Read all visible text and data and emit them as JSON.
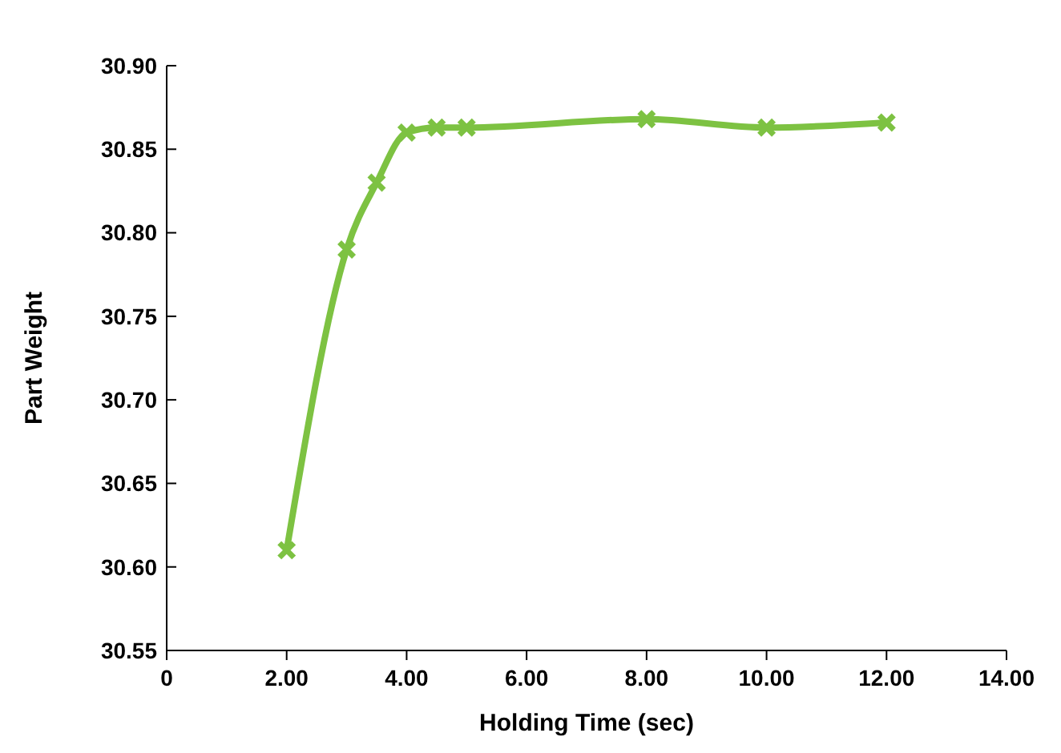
{
  "chart_data": {
    "type": "line",
    "xlabel": "Holding Time (sec)",
    "ylabel": "Part Weight",
    "x": [
      2,
      3,
      3.5,
      4,
      4.5,
      5,
      8,
      10,
      12
    ],
    "series": [
      {
        "color": "#7dc242",
        "values": [
          30.61,
          30.79,
          30.83,
          30.86,
          30.863,
          30.863,
          30.868,
          30.863,
          30.866
        ]
      }
    ],
    "xlim": [
      0,
      14
    ],
    "xticks": [
      0,
      {
        "value": 2,
        "label": "2.00"
      },
      {
        "value": 4,
        "label": "4.00"
      },
      {
        "value": 6,
        "label": "6.00"
      },
      {
        "value": 8,
        "label": "8.00"
      },
      {
        "value": 10,
        "label": "10.00"
      },
      {
        "value": 12,
        "label": "12.00"
      },
      {
        "value": 14,
        "label": "14.00"
      }
    ],
    "ylim": [
      30.55,
      30.9
    ],
    "yticks": [
      {
        "value": 30.55,
        "label": "30.55"
      },
      {
        "value": 30.6,
        "label": "30.60"
      },
      {
        "value": 30.65,
        "label": "30.65"
      },
      {
        "value": 30.7,
        "label": "30.70"
      },
      {
        "value": 30.75,
        "label": "30.75"
      },
      {
        "value": 30.8,
        "label": "30.80"
      },
      {
        "value": 30.85,
        "label": "30.85"
      },
      {
        "value": 30.9,
        "label": "30.90"
      }
    ],
    "grid": false,
    "marker": "cross",
    "line_style": "solid"
  }
}
